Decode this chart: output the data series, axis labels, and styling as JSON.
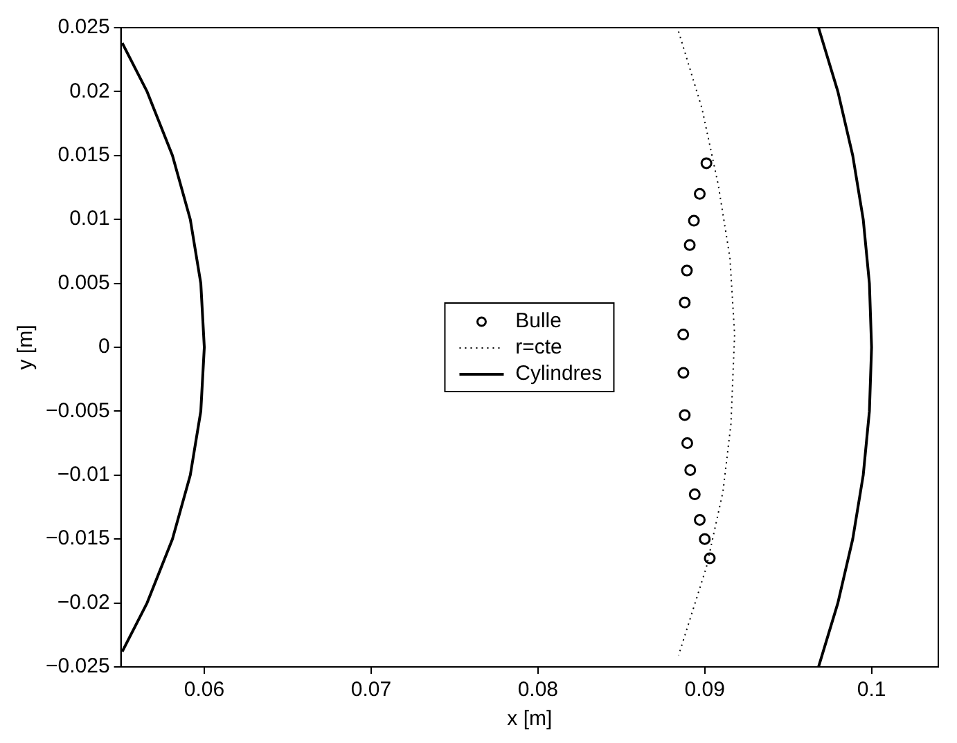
{
  "chart_data": {
    "type": "scatter",
    "xlabel": "x [m]",
    "ylabel": "y [m]",
    "xlim": [
      0.055,
      0.104
    ],
    "ylim": [
      -0.025,
      0.025
    ],
    "xticks": [
      0.06,
      0.07,
      0.08,
      0.09,
      0.1
    ],
    "yticks": [
      {
        "value": -0.025,
        "label": "−0.025"
      },
      {
        "value": -0.02,
        "label": "−0.02"
      },
      {
        "value": -0.015,
        "label": "−0.015"
      },
      {
        "value": -0.01,
        "label": "−0.01"
      },
      {
        "value": -0.005,
        "label": "−0.005"
      },
      0,
      0.005,
      0.01,
      0.015,
      0.02,
      0.025
    ],
    "grid": false,
    "legend": "center",
    "series": [
      {
        "name": "Bulle",
        "type": "scatter",
        "marker": "circle",
        "color": "#000000",
        "x": [
          0.0901,
          0.0897,
          0.08935,
          0.0891,
          0.08893,
          0.0888,
          0.08871,
          0.08872,
          0.0888,
          0.08895,
          0.08913,
          0.0894,
          0.0897,
          0.09,
          0.0903
        ],
        "values": [
          0.0144,
          0.012,
          0.0099,
          0.008,
          0.006,
          0.0035,
          0.001,
          -0.002,
          -0.0053,
          -0.0075,
          -0.0096,
          -0.0115,
          -0.0135,
          -0.015,
          -0.0165
        ]
      },
      {
        "name": "r=cte",
        "type": "line",
        "line_style": "dotted",
        "marker": "none",
        "color": "#000000",
        "x": [
          0.08843,
          0.08983,
          0.09081,
          0.09151,
          0.09179,
          0.09157,
          0.09109,
          0.0901,
          0.08843
        ],
        "values": [
          0.0247,
          0.0187,
          0.0127,
          0.007,
          0.001,
          -0.006,
          -0.0113,
          -0.0172,
          -0.0241
        ]
      },
      {
        "name": "Cylindres",
        "type": "line",
        "line_style": "solid",
        "marker": "none",
        "color": "#000000",
        "x": [
          0.05508,
          0.05657,
          0.05809,
          0.05916,
          0.05979,
          0.06,
          0.05979,
          0.05916,
          0.05809,
          0.05657,
          0.05508,
          null,
          0.09682,
          0.09798,
          0.09887,
          0.0995,
          0.09987,
          0.1,
          0.09987,
          0.0995,
          0.09887,
          0.09798,
          0.09682
        ],
        "values": [
          0.0238,
          0.02,
          0.015,
          0.01,
          0.005,
          0,
          -0.005,
          -0.01,
          -0.015,
          -0.02,
          -0.0238,
          null,
          0.025,
          0.02,
          0.015,
          0.01,
          0.005,
          0,
          -0.005,
          -0.01,
          -0.015,
          -0.02,
          -0.025
        ]
      }
    ]
  }
}
